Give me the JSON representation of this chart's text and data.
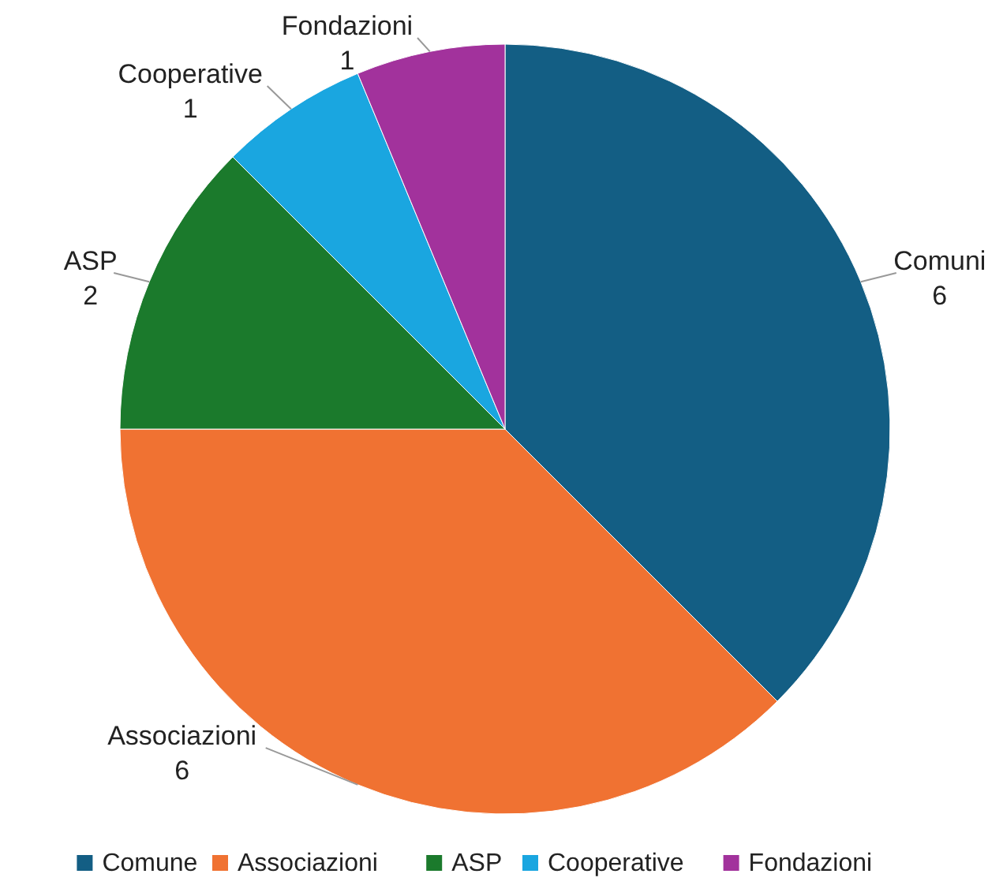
{
  "chart_data": {
    "type": "pie",
    "categories": [
      "Comune",
      "Associazioni",
      "ASP",
      "Cooperative",
      "Fondazioni"
    ],
    "values": [
      6,
      6,
      2,
      1,
      1
    ],
    "colors": [
      "#135e84",
      "#f07232",
      "#1b7a2c",
      "#1aa6e0",
      "#a2329c"
    ],
    "value_labels": [
      "Comuni\n6",
      "Associazioni\n6",
      "ASP\n2",
      "Cooperative\n1",
      "Fondazioni\n1"
    ],
    "legend": "bottom"
  }
}
